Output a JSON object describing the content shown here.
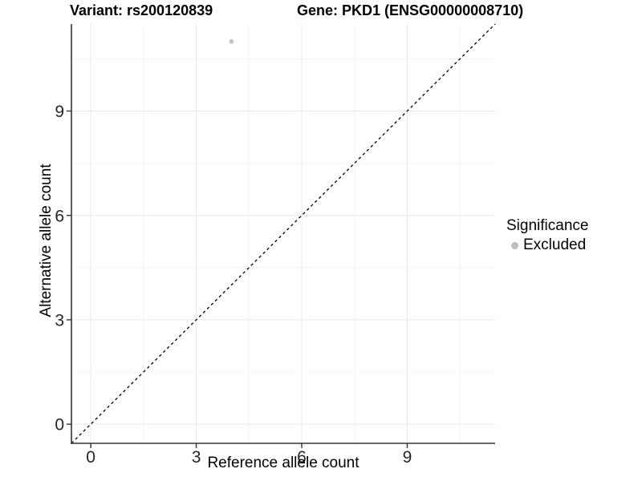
{
  "titles": {
    "variant": "Variant: rs200120839",
    "gene": "Gene: PKD1 (ENSG00000008710)"
  },
  "axes": {
    "x_label": "Reference allele count",
    "y_label": "Alternative allele count"
  },
  "legend": {
    "title": "Significance",
    "items": [
      {
        "label": "Excluded",
        "color": "#bdbdbd"
      }
    ]
  },
  "colors": {
    "axis_line": "#333333",
    "tick_mark": "#333333",
    "tick_text": "#262626",
    "grid_major": "#e7e7e7",
    "grid_minor": "#f3f3f3",
    "identity_line": "#000000",
    "point": "#c2c2c2",
    "background": "#ffffff"
  },
  "chart_data": {
    "type": "scatter",
    "title": "Variant: rs200120839   Gene: PKD1 (ENSG00000008710)",
    "xlabel": "Reference allele count",
    "ylabel": "Alternative allele count",
    "xlim": [
      -0.55,
      11.5
    ],
    "ylim": [
      -0.55,
      11.5
    ],
    "xticks": [
      0,
      3,
      6,
      9
    ],
    "yticks": [
      0,
      3,
      6,
      9
    ],
    "x_minor_ticks": [
      1.5,
      4.5,
      7.5,
      10.5
    ],
    "y_minor_ticks": [
      1.5,
      4.5,
      7.5,
      10.5
    ],
    "grid": true,
    "legend_position": "right",
    "identity_line": {
      "slope": 1,
      "intercept": 0,
      "style": "dashed"
    },
    "series": [
      {
        "name": "Excluded",
        "color": "#c2c2c2",
        "points": [
          {
            "x": 4,
            "y": 11
          }
        ]
      }
    ]
  }
}
